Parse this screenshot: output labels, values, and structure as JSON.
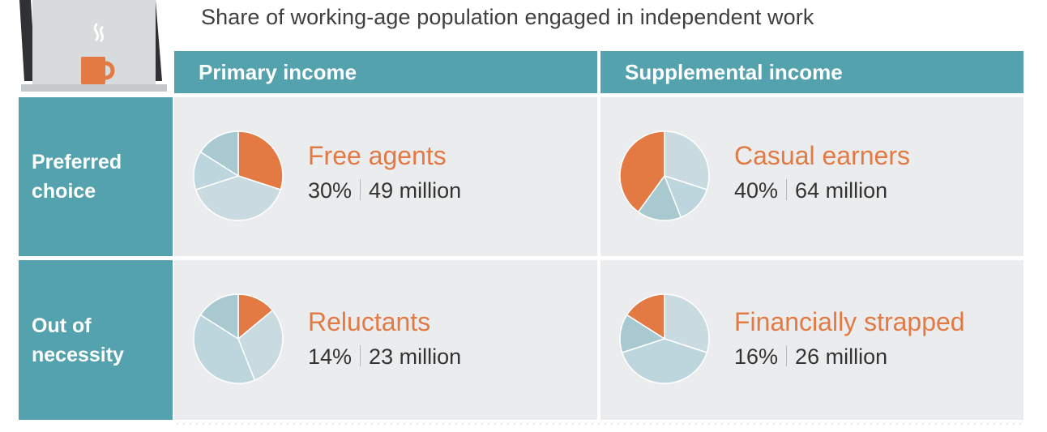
{
  "header": {
    "subtitle": "Share of working-age population engaged in independent work"
  },
  "columns": [
    {
      "label": "Primary income"
    },
    {
      "label": "Supplemental income"
    }
  ],
  "rows": [
    {
      "label_line1": "Preferred",
      "label_line2": "choice"
    },
    {
      "label_line1": "Out of",
      "label_line2": "necessity"
    }
  ],
  "cells": [
    {
      "name": "Free agents",
      "percent": "30%",
      "count": "49 million"
    },
    {
      "name": "Casual earners",
      "percent": "40%",
      "count": "64 million"
    },
    {
      "name": "Reluctants",
      "percent": "14%",
      "count": "23 million"
    },
    {
      "name": "Financially strapped",
      "percent": "16%",
      "count": "26 million"
    }
  ],
  "chart_data": {
    "type": "pie",
    "title": "",
    "segments": [
      {
        "name": "Free agents",
        "value": 30,
        "value_label": "30%",
        "count": "49 million",
        "income": "Primary income",
        "motivation": "Preferred choice"
      },
      {
        "name": "Casual earners",
        "value": 40,
        "value_label": "40%",
        "count": "64 million",
        "income": "Supplemental income",
        "motivation": "Preferred choice"
      },
      {
        "name": "Reluctants",
        "value": 14,
        "value_label": "14%",
        "count": "23 million",
        "income": "Primary income",
        "motivation": "Out of necessity"
      },
      {
        "name": "Financially strapped",
        "value": 16,
        "value_label": "16%",
        "count": "26 million",
        "income": "Supplemental income",
        "motivation": "Out of necessity"
      }
    ],
    "pie_order": [
      "Free agents",
      "Casual earners",
      "Reluctants",
      "Financially strapped"
    ],
    "highlight_color": "#e37a44",
    "other_colors": [
      "#c9dbe0",
      "#bdd6dd",
      "#a9c9d1"
    ],
    "header_color": "#54a2ad",
    "cell_color": "#ebeced"
  }
}
